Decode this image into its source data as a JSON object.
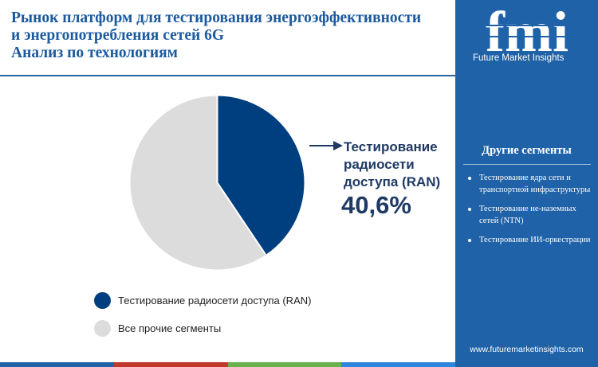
{
  "title_lines": [
    "Рынок платформ для тестирования энергоэффективности",
    "и энергопотребления сетей 6G",
    "Анализ по технологиям"
  ],
  "logo": {
    "letters": "fmi",
    "caption": "Future Market Insights",
    "icon": "fmi-logo-icon"
  },
  "sidebar": {
    "heading": "Другие сегменты",
    "items": [
      "Тестирование ядра сети и транспортной инфраструктуры",
      "Тестирование не-наземных сетей (NTN)",
      "Тестирование ИИ-оркестрации"
    ],
    "website": "www.futuremarketinsights.com"
  },
  "colors": {
    "brand_blue": "#1f62a8",
    "series_primary": "#003f7f",
    "series_other": "#dcdcdc",
    "bottom_bar": [
      "#1f62a8",
      "#c0392b",
      "#6ab04c",
      "#2e86de"
    ]
  },
  "chart_data": {
    "type": "pie",
    "labels": [
      "Тестирование радиосети доступа (RAN)",
      "Все прочие сегменты"
    ],
    "values": [
      40.6,
      59.4
    ],
    "colors": [
      "#003f7f",
      "#dcdcdc"
    ],
    "legend_position": "bottom",
    "callout": {
      "label": "Тестирование радиосети доступа (RAN)",
      "value_text": "40,6%"
    }
  }
}
